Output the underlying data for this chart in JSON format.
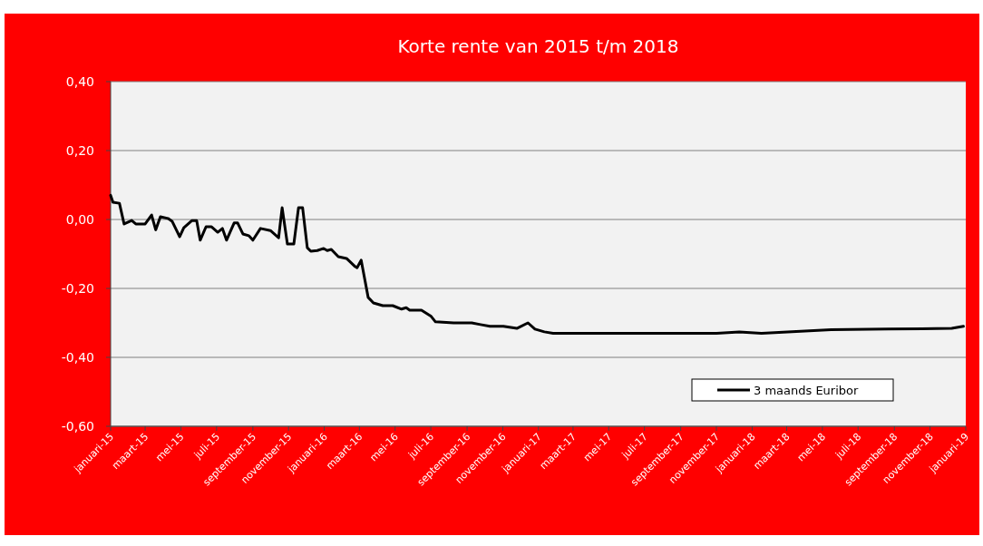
{
  "chart_data": {
    "type": "line",
    "title": "Korte rente van 2015 t/m 2018",
    "x": [
      "2015-01-01",
      "2015-01-05",
      "2015-01-16",
      "2015-01-24",
      "2015-02-06",
      "2015-02-13",
      "2015-03-01",
      "2015-03-12",
      "2015-03-19",
      "2015-03-27",
      "2015-04-09",
      "2015-04-16",
      "2015-04-29",
      "2015-05-06",
      "2015-05-20",
      "2015-05-28",
      "2015-06-03",
      "2015-06-13",
      "2015-06-22",
      "2015-07-03",
      "2015-07-11",
      "2015-07-18",
      "2015-07-31",
      "2015-08-06",
      "2015-08-15",
      "2015-08-25",
      "2015-09-01",
      "2015-09-14",
      "2015-10-01",
      "2015-10-15",
      "2015-10-21",
      "2015-10-30",
      "2015-11-10",
      "2015-11-18",
      "2015-11-25",
      "2015-12-03",
      "2015-12-09",
      "2015-12-20",
      "2015-12-31",
      "2016-01-06",
      "2016-01-13",
      "2016-01-25",
      "2016-02-08",
      "2016-02-23",
      "2016-02-26",
      "2016-03-04",
      "2016-03-16",
      "2016-03-25",
      "2016-04-10",
      "2016-04-27",
      "2016-05-12",
      "2016-05-20",
      "2016-05-26",
      "2016-06-15",
      "2016-07-01",
      "2016-07-09",
      "2016-08-09",
      "2016-09-09",
      "2016-09-24",
      "2016-10-10",
      "2016-11-02",
      "2016-11-25",
      "2016-12-14",
      "2016-12-26",
      "2017-01-11",
      "2017-01-26",
      "2017-03-29",
      "2017-07-17",
      "2017-11-01",
      "2017-12-10",
      "2018-01-17",
      "2018-05-16",
      "2018-08-21",
      "2018-12-08",
      "2018-12-28"
    ],
    "series": [
      {
        "name": "3 maands Euribor",
        "color": "#000000",
        "values": [
          0.07,
          0.05,
          0.047,
          -0.013,
          -0.003,
          -0.013,
          -0.013,
          0.013,
          -0.03,
          0.008,
          0.003,
          -0.005,
          -0.05,
          -0.024,
          -0.003,
          -0.003,
          -0.06,
          -0.021,
          -0.021,
          -0.037,
          -0.026,
          -0.06,
          -0.01,
          -0.01,
          -0.042,
          -0.047,
          -0.06,
          -0.026,
          -0.032,
          -0.053,
          0.034,
          -0.071,
          -0.071,
          0.034,
          0.034,
          -0.082,
          -0.092,
          -0.09,
          -0.084,
          -0.09,
          -0.087,
          -0.108,
          -0.113,
          -0.137,
          -0.14,
          -0.118,
          -0.226,
          -0.242,
          -0.25,
          -0.25,
          -0.26,
          -0.256,
          -0.263,
          -0.263,
          -0.28,
          -0.297,
          -0.3,
          -0.3,
          -0.305,
          -0.31,
          -0.31,
          -0.316,
          -0.3,
          -0.318,
          -0.326,
          -0.33,
          -0.33,
          -0.33,
          -0.33,
          -0.326,
          -0.33,
          -0.32,
          -0.318,
          -0.316,
          -0.31
        ]
      }
    ],
    "xlim": [
      "2015-01-01",
      "2019-01-01"
    ],
    "xticks": [
      {
        "value": "2015-01-01",
        "label": "januari-15"
      },
      {
        "value": "2015-03-01",
        "label": "maart-15"
      },
      {
        "value": "2015-05-01",
        "label": "mei-15"
      },
      {
        "value": "2015-07-01",
        "label": "juli-15"
      },
      {
        "value": "2015-09-01",
        "label": "september-15"
      },
      {
        "value": "2015-11-01",
        "label": "november-15"
      },
      {
        "value": "2016-01-01",
        "label": "januari-16"
      },
      {
        "value": "2016-03-01",
        "label": "maart-16"
      },
      {
        "value": "2016-05-01",
        "label": "mei-16"
      },
      {
        "value": "2016-07-01",
        "label": "juli-16"
      },
      {
        "value": "2016-09-01",
        "label": "september-16"
      },
      {
        "value": "2016-11-01",
        "label": "november-16"
      },
      {
        "value": "2017-01-01",
        "label": "januari-17"
      },
      {
        "value": "2017-03-01",
        "label": "maart-17"
      },
      {
        "value": "2017-05-01",
        "label": "mei-17"
      },
      {
        "value": "2017-07-01",
        "label": "juli-17"
      },
      {
        "value": "2017-09-01",
        "label": "september-17"
      },
      {
        "value": "2017-11-01",
        "label": "november-17"
      },
      {
        "value": "2018-01-01",
        "label": "januari-18"
      },
      {
        "value": "2018-03-01",
        "label": "maart-18"
      },
      {
        "value": "2018-05-01",
        "label": "mei-18"
      },
      {
        "value": "2018-07-01",
        "label": "juli-18"
      },
      {
        "value": "2018-09-01",
        "label": "september-18"
      },
      {
        "value": "2018-11-01",
        "label": "november-18"
      },
      {
        "value": "2019-01-01",
        "label": "januari-19"
      }
    ],
    "ylim": [
      -0.6,
      0.4
    ],
    "yticks": [
      {
        "value": -0.6,
        "label": "-0,60"
      },
      {
        "value": -0.4,
        "label": "-0,40"
      },
      {
        "value": -0.2,
        "label": "-0,20"
      },
      {
        "value": 0,
        "label": "0,00"
      },
      {
        "value": 0.2,
        "label": "0,20"
      },
      {
        "value": 0.4,
        "label": "0,40"
      }
    ],
    "grid": "y",
    "legend": "bottom right",
    "marker": "none",
    "line_style": "solid"
  }
}
